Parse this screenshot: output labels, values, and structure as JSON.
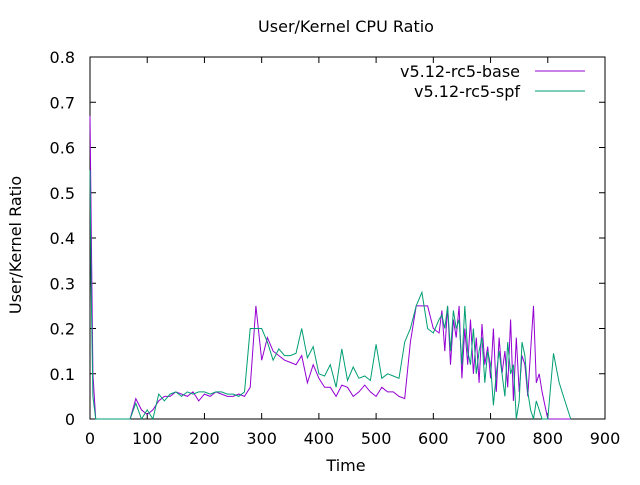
{
  "chart_data": {
    "type": "line",
    "title": "User/Kernel CPU Ratio",
    "xlabel": "Time",
    "ylabel": "User/Kernel Ratio",
    "xlim": [
      0,
      900
    ],
    "ylim": [
      0,
      0.8
    ],
    "xticks": [
      0,
      100,
      200,
      300,
      400,
      500,
      600,
      700,
      800,
      900
    ],
    "xtick_labels": [
      "0",
      "100",
      "200",
      "300",
      "400",
      "500",
      "600",
      "700",
      "800",
      "900"
    ],
    "yticks": [
      0,
      0.1,
      0.2,
      0.3,
      0.4,
      0.5,
      0.6,
      0.7,
      0.8
    ],
    "ytick_labels": [
      "0",
      "0.1",
      "0.2",
      "0.3",
      "0.4",
      "0.5",
      "0.6",
      "0.7",
      "0.8"
    ],
    "grid": false,
    "legend_position": "top-right",
    "series": [
      {
        "name": "v5.12-rc5-base",
        "color": "#9400d3",
        "x": [
          0,
          2,
          5,
          10,
          70,
          80,
          90,
          100,
          110,
          120,
          130,
          140,
          150,
          160,
          170,
          180,
          190,
          200,
          210,
          220,
          230,
          240,
          250,
          260,
          270,
          280,
          290,
          300,
          310,
          320,
          330,
          340,
          350,
          360,
          370,
          380,
          390,
          400,
          410,
          420,
          430,
          440,
          450,
          460,
          470,
          480,
          490,
          500,
          510,
          520,
          530,
          540,
          550,
          560,
          570,
          580,
          590,
          600,
          610,
          615,
          620,
          625,
          630,
          635,
          640,
          645,
          650,
          655,
          660,
          665,
          670,
          675,
          680,
          685,
          690,
          695,
          700,
          705,
          710,
          715,
          720,
          725,
          730,
          735,
          740,
          745,
          750,
          755,
          760,
          765,
          770,
          775,
          780,
          785,
          790,
          795,
          800,
          805,
          810,
          820,
          830,
          840
        ],
        "y": [
          0.67,
          0.45,
          0.1,
          0,
          0,
          0.045,
          0.02,
          0.01,
          0.02,
          0.04,
          0.05,
          0.05,
          0.06,
          0.055,
          0.05,
          0.06,
          0.04,
          0.055,
          0.05,
          0.06,
          0.055,
          0.05,
          0.05,
          0.055,
          0.05,
          0.07,
          0.25,
          0.13,
          0.18,
          0.15,
          0.14,
          0.13,
          0.125,
          0.12,
          0.14,
          0.08,
          0.12,
          0.09,
          0.07,
          0.07,
          0.05,
          0.075,
          0.07,
          0.05,
          0.06,
          0.075,
          0.06,
          0.05,
          0.07,
          0.06,
          0.06,
          0.05,
          0.045,
          0.17,
          0.25,
          0.25,
          0.25,
          0.2,
          0.19,
          0.24,
          0.15,
          0.25,
          0.12,
          0.22,
          0.18,
          0.25,
          0.09,
          0.2,
          0.12,
          0.22,
          0.1,
          0.18,
          0.08,
          0.21,
          0.12,
          0.16,
          0.09,
          0.2,
          0.06,
          0.18,
          0.1,
          0.15,
          0.07,
          0.22,
          0.04,
          0.18,
          0.06,
          0.14,
          0.12,
          0.05,
          0.15,
          0.25,
          0.08,
          0.1,
          0.06,
          0.03,
          0,
          0,
          0,
          0,
          0,
          0
        ]
      },
      {
        "name": "v5.12-rc5-spf",
        "color": "#009e73",
        "x": [
          0,
          2,
          5,
          10,
          70,
          80,
          90,
          100,
          110,
          120,
          130,
          140,
          150,
          160,
          170,
          180,
          190,
          200,
          210,
          220,
          230,
          240,
          250,
          260,
          270,
          280,
          290,
          300,
          310,
          320,
          330,
          340,
          350,
          360,
          370,
          380,
          390,
          400,
          410,
          420,
          430,
          440,
          450,
          460,
          470,
          480,
          490,
          500,
          510,
          520,
          530,
          540,
          550,
          560,
          570,
          580,
          590,
          600,
          610,
          615,
          620,
          625,
          630,
          635,
          640,
          645,
          650,
          655,
          660,
          665,
          670,
          675,
          680,
          685,
          690,
          695,
          700,
          705,
          710,
          715,
          720,
          725,
          730,
          735,
          740,
          745,
          750,
          755,
          760,
          765,
          770,
          775,
          780,
          790,
          800,
          810,
          820,
          830,
          840
        ],
        "y": [
          0.55,
          0.3,
          0.05,
          0,
          0,
          0.035,
          0,
          0.02,
          0,
          0.055,
          0.04,
          0.055,
          0.06,
          0.05,
          0.06,
          0.055,
          0.06,
          0.06,
          0.055,
          0.06,
          0.06,
          0.055,
          0.055,
          0.05,
          0.06,
          0.2,
          0.2,
          0.2,
          0.17,
          0.13,
          0.155,
          0.14,
          0.14,
          0.145,
          0.2,
          0.135,
          0.16,
          0.1,
          0.095,
          0.12,
          0.07,
          0.155,
          0.085,
          0.115,
          0.09,
          0.095,
          0.085,
          0.165,
          0.09,
          0.1,
          0.095,
          0.09,
          0.17,
          0.2,
          0.25,
          0.28,
          0.2,
          0.19,
          0.22,
          0.23,
          0.2,
          0.25,
          0.15,
          0.24,
          0.2,
          0.22,
          0.12,
          0.25,
          0.15,
          0.12,
          0.2,
          0.1,
          0.15,
          0.18,
          0.08,
          0.15,
          0.12,
          0.03,
          0.1,
          0.15,
          0.1,
          0.05,
          0.17,
          0.1,
          0.12,
          0,
          0.04,
          0.17,
          0.14,
          0.06,
          0.02,
          0,
          0.04,
          0,
          0,
          0.145,
          0.08,
          0.04,
          0
        ]
      }
    ]
  }
}
